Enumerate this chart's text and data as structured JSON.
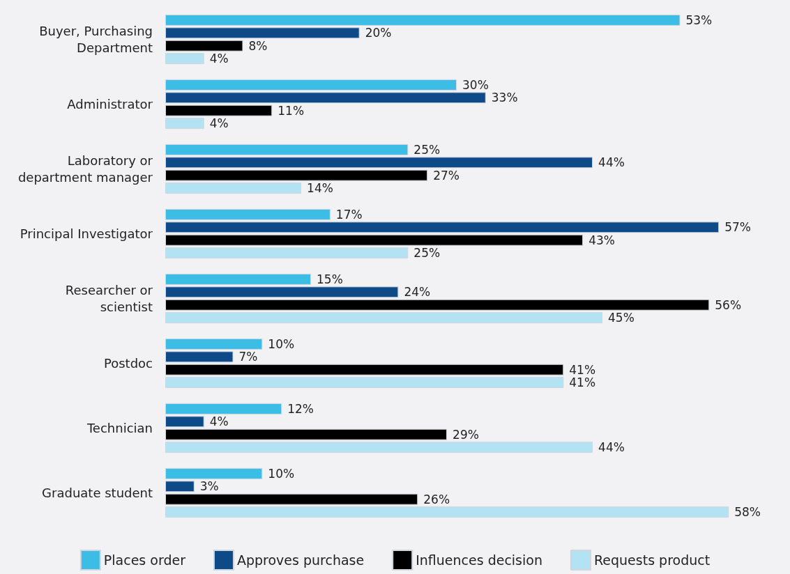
{
  "chart_data": {
    "type": "bar",
    "orientation": "horizontal",
    "legend": "bottom",
    "grid": false,
    "categories": [
      "Buyer, Purchasing\nDepartment",
      "Administrator",
      "Laboratory or\ndepartment manager",
      "Principal Investigator",
      "Researcher or\nscientist",
      "Postdoc",
      "Technician",
      "Graduate student"
    ],
    "series": [
      {
        "name": "Places order",
        "color": "#3bbde6",
        "values": [
          53,
          30,
          25,
          17,
          15,
          10,
          12,
          10
        ],
        "value_labels": [
          "53%",
          "30%",
          "25%",
          "17%",
          "15%",
          "10%",
          "12%",
          "10%"
        ]
      },
      {
        "name": "Approves purchase",
        "color": "#0e4a87",
        "values": [
          20,
          33,
          44,
          57,
          24,
          7,
          4,
          3
        ],
        "value_labels": [
          "20%",
          "33%",
          "44%",
          "57%",
          "24%",
          "7%",
          "4%",
          "3%"
        ]
      },
      {
        "name": "Influences decision",
        "color": "#000000",
        "values": [
          8,
          11,
          27,
          43,
          56,
          41,
          29,
          26
        ],
        "value_labels": [
          "8%",
          "11%",
          "27%",
          "43%",
          "56%",
          "41%",
          "29%",
          "26%"
        ]
      },
      {
        "name": "Requests product",
        "color": "#b3e3f3",
        "values": [
          4,
          4,
          14,
          25,
          45,
          41,
          44,
          58
        ],
        "value_labels": [
          "4%",
          "4%",
          "14%",
          "25%",
          "45%",
          "41%",
          "44%",
          "58%"
        ]
      }
    ]
  }
}
